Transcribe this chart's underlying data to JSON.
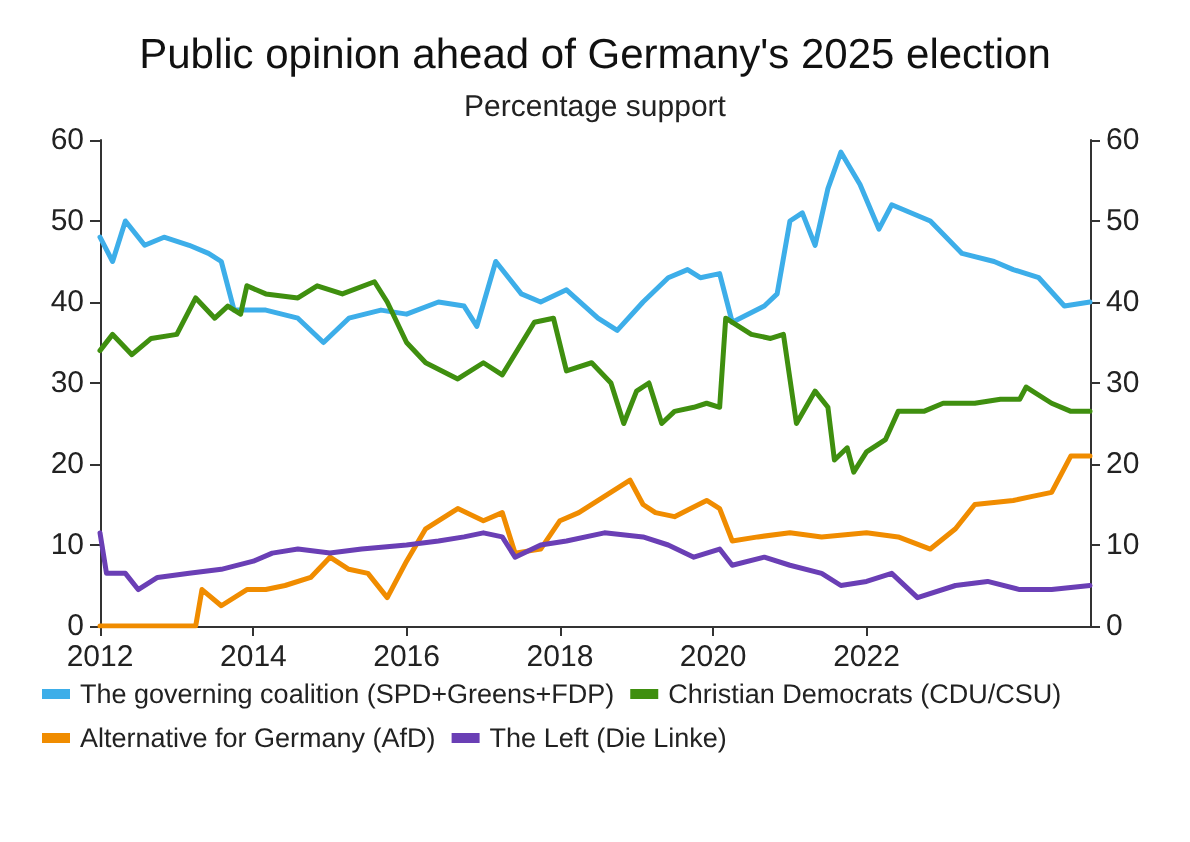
{
  "chart_data": {
    "type": "line",
    "title": "Public opinion ahead of Germany's 2025 election",
    "subtitle": "Percentage support",
    "xlim": [
      "2012-01",
      "2024-12"
    ],
    "xticks": [
      "2012",
      "2014",
      "2016",
      "2018",
      "2020",
      "2022"
    ],
    "ylim": [
      0,
      60
    ],
    "yticks": [
      0,
      10,
      20,
      30,
      40,
      50,
      60
    ],
    "y2lim": [
      0,
      60
    ],
    "y2ticks": [
      0,
      10,
      20,
      30,
      40,
      50,
      60
    ],
    "grid": false,
    "legend": "bottom",
    "marker": "none",
    "line_style": "solid",
    "series": [
      {
        "name": "The governing coalition (SPD+Greens+FDP)",
        "color": "#3daee9",
        "x": [
          "2012-01",
          "2012-03",
          "2012-05",
          "2012-08",
          "2012-11",
          "2013-03",
          "2013-06",
          "2013-08",
          "2013-10",
          "2014-03",
          "2014-08",
          "2014-12",
          "2015-04",
          "2015-09",
          "2016-01",
          "2016-06",
          "2016-10",
          "2016-12",
          "2017-03",
          "2017-07",
          "2017-10",
          "2018-02",
          "2018-07",
          "2018-10",
          "2019-02",
          "2019-06",
          "2019-09",
          "2019-11",
          "2020-02",
          "2020-04",
          "2020-09",
          "2020-11",
          "2021-01",
          "2021-03",
          "2021-05",
          "2021-07",
          "2021-09",
          "2021-12",
          "2022-03",
          "2022-05",
          "2022-11",
          "2023-04",
          "2023-09",
          "2023-12",
          "2024-04",
          "2024-08",
          "2024-12"
        ],
        "values": [
          48,
          45,
          50,
          47,
          48,
          47,
          46,
          45,
          39,
          39,
          38,
          35,
          38,
          39,
          38.5,
          40,
          39.5,
          37,
          45,
          41,
          40,
          41.5,
          38,
          36.5,
          40,
          43,
          44,
          43,
          43.5,
          37.5,
          39.5,
          41,
          50,
          51,
          47,
          54,
          58.5,
          54.5,
          49,
          52,
          50,
          46,
          45,
          44,
          43,
          39.5,
          40
        ]
      },
      {
        "name": "Christian Democrats (CDU/CSU)",
        "color": "#3f8f0f",
        "x": [
          "2012-01",
          "2012-03",
          "2012-06",
          "2012-09",
          "2013-01",
          "2013-04",
          "2013-07",
          "2013-09",
          "2013-11",
          "2013-12",
          "2014-03",
          "2014-08",
          "2014-11",
          "2015-03",
          "2015-08",
          "2015-10",
          "2016-01",
          "2016-04",
          "2016-09",
          "2017-01",
          "2017-04",
          "2017-09",
          "2017-12",
          "2018-02",
          "2018-06",
          "2018-09",
          "2018-11",
          "2019-01",
          "2019-03",
          "2019-05",
          "2019-07",
          "2019-10",
          "2019-12",
          "2020-02",
          "2020-03",
          "2020-07",
          "2020-10",
          "2020-12",
          "2021-02",
          "2021-05",
          "2021-07",
          "2021-08",
          "2021-10",
          "2021-11",
          "2022-01",
          "2022-04",
          "2022-06",
          "2022-10",
          "2023-01",
          "2023-06",
          "2023-10",
          "2024-01",
          "2024-02",
          "2024-06",
          "2024-09",
          "2024-12"
        ],
        "values": [
          34,
          36,
          33.5,
          35.5,
          36,
          40.5,
          38,
          39.5,
          38.5,
          42,
          41,
          40.5,
          42,
          41,
          42.5,
          40,
          35,
          32.5,
          30.5,
          32.5,
          31,
          37.5,
          38,
          31.5,
          32.5,
          30,
          25,
          29,
          30,
          25,
          26.5,
          27,
          27.5,
          27,
          38,
          36,
          35.5,
          36,
          25,
          29,
          27,
          20.5,
          22,
          19,
          21.5,
          23,
          26.5,
          26.5,
          27.5,
          27.5,
          28,
          28,
          29.5,
          27.5,
          26.5,
          26.5
        ]
      },
      {
        "name": "Alternative for Germany (AfD)",
        "color": "#f08c00",
        "x": [
          "2012-01",
          "2013-04",
          "2013-05",
          "2013-08",
          "2013-12",
          "2014-03",
          "2014-06",
          "2014-10",
          "2015-01",
          "2015-04",
          "2015-07",
          "2015-10",
          "2016-01",
          "2016-04",
          "2016-09",
          "2017-01",
          "2017-04",
          "2017-06",
          "2017-10",
          "2018-01",
          "2018-04",
          "2018-08",
          "2018-12",
          "2019-02",
          "2019-04",
          "2019-07",
          "2019-12",
          "2020-02",
          "2020-04",
          "2020-08",
          "2021-01",
          "2021-06",
          "2022-01",
          "2022-06",
          "2022-11",
          "2023-03",
          "2023-06",
          "2023-12",
          "2024-03",
          "2024-06",
          "2024-09",
          "2024-12"
        ],
        "values": [
          0,
          0,
          4.5,
          2.5,
          4.5,
          4.5,
          5,
          6,
          8.5,
          7,
          6.5,
          3.5,
          8,
          12,
          14.5,
          13,
          14,
          9,
          9.5,
          13,
          14,
          16,
          18,
          15,
          14,
          13.5,
          15.5,
          14.5,
          10.5,
          11,
          11.5,
          11,
          11.5,
          11,
          9.5,
          12,
          15,
          15.5,
          16,
          16.5,
          21,
          21
        ]
      },
      {
        "name": "The Left (Die Linke)",
        "color": "#6a3fb5",
        "x": [
          "2012-01",
          "2012-02",
          "2012-05",
          "2012-07",
          "2012-10",
          "2013-03",
          "2013-08",
          "2014-01",
          "2014-04",
          "2014-08",
          "2015-01",
          "2015-06",
          "2016-01",
          "2016-06",
          "2016-10",
          "2017-01",
          "2017-04",
          "2017-06",
          "2017-10",
          "2018-02",
          "2018-08",
          "2019-02",
          "2019-06",
          "2019-10",
          "2020-02",
          "2020-04",
          "2020-09",
          "2021-01",
          "2021-06",
          "2021-09",
          "2022-01",
          "2022-05",
          "2022-09",
          "2023-03",
          "2023-08",
          "2024-01",
          "2024-06",
          "2024-12"
        ],
        "values": [
          11.5,
          6.5,
          6.5,
          4.5,
          6,
          6.5,
          7,
          8,
          9,
          9.5,
          9,
          9.5,
          10,
          10.5,
          11,
          11.5,
          11,
          8.5,
          10,
          10.5,
          11.5,
          11,
          10,
          8.5,
          9.5,
          7.5,
          8.5,
          7.5,
          6.5,
          5,
          5.5,
          6.5,
          3.5,
          5,
          5.5,
          4.5,
          4.5,
          5
        ]
      }
    ]
  }
}
